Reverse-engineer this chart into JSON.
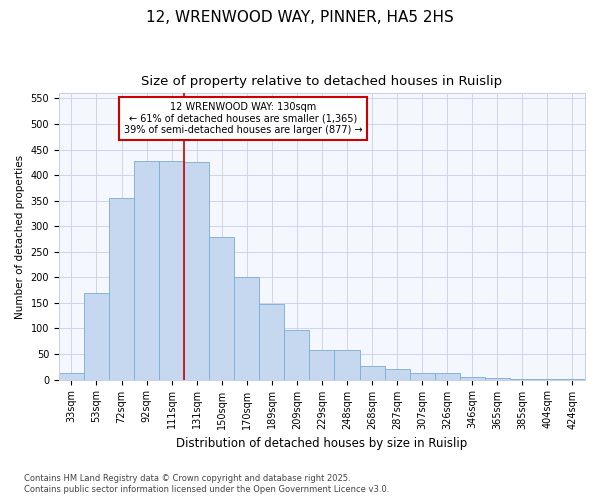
{
  "title": "12, WRENWOOD WAY, PINNER, HA5 2HS",
  "subtitle": "Size of property relative to detached houses in Ruislip",
  "xlabel": "Distribution of detached houses by size in Ruislip",
  "ylabel": "Number of detached properties",
  "categories": [
    "33sqm",
    "53sqm",
    "72sqm",
    "92sqm",
    "111sqm",
    "131sqm",
    "150sqm",
    "170sqm",
    "189sqm",
    "209sqm",
    "229sqm",
    "248sqm",
    "268sqm",
    "287sqm",
    "307sqm",
    "326sqm",
    "346sqm",
    "365sqm",
    "385sqm",
    "404sqm",
    "424sqm"
  ],
  "values": [
    12,
    170,
    355,
    428,
    428,
    425,
    278,
    200,
    148,
    97,
    58,
    58,
    26,
    20,
    13,
    13,
    5,
    4,
    2,
    1,
    1
  ],
  "bar_color": "#c5d8f0",
  "bar_edge_color": "#7aacd6",
  "vline_index": 4.5,
  "annotation_title": "12 WRENWOOD WAY: 130sqm",
  "annotation_line1": "← 61% of detached houses are smaller (1,365)",
  "annotation_line2": "39% of semi-detached houses are larger (877) →",
  "annotation_color": "#cc0000",
  "background_color": "#ffffff",
  "plot_bg_color": "#f5f7ff",
  "grid_color": "#c8d0e8",
  "ylim": [
    0,
    560
  ],
  "yticks": [
    0,
    50,
    100,
    150,
    200,
    250,
    300,
    350,
    400,
    450,
    500,
    550
  ],
  "title_fontsize": 11,
  "subtitle_fontsize": 9.5,
  "xlabel_fontsize": 8.5,
  "ylabel_fontsize": 7.5,
  "tick_fontsize": 7,
  "annotation_fontsize": 7,
  "footnote_fontsize": 6,
  "footnote1": "Contains HM Land Registry data © Crown copyright and database right 2025.",
  "footnote2": "Contains public sector information licensed under the Open Government Licence v3.0."
}
